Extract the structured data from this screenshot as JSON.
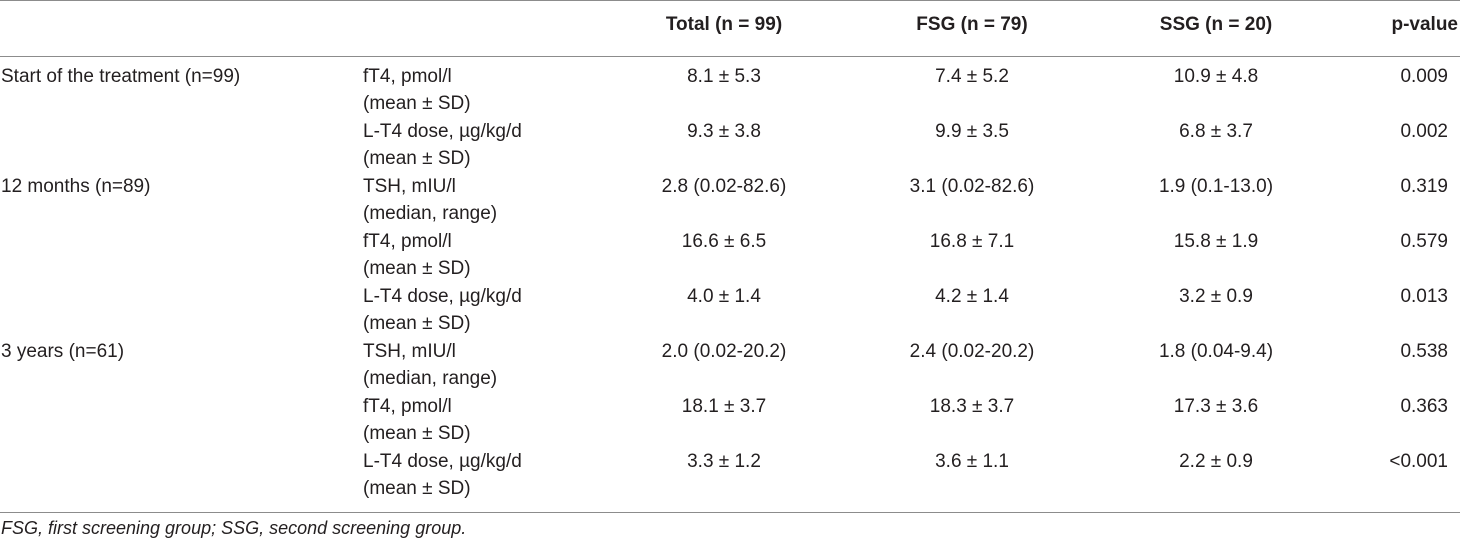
{
  "table": {
    "headers": {
      "group": "",
      "parameter": "",
      "total": "Total (n = 99)",
      "fsg": "FSG (n = 79)",
      "ssg": "SSG (n = 20)",
      "p": "p-value"
    },
    "rows": [
      {
        "group": "Start of the treatment (n=99)",
        "param": "fT4, pmol/l",
        "param2": "(mean ± SD)",
        "total": "8.1 ± 5.3",
        "fsg": "7.4 ± 5.2",
        "ssg": "10.9 ± 4.8",
        "p": "0.009"
      },
      {
        "group": "",
        "param": "L-T4 dose, µg/kg/d",
        "param2": "(mean ± SD)",
        "total": "9.3 ± 3.8",
        "fsg": "9.9 ± 3.5",
        "ssg": "6.8 ± 3.7",
        "p": "0.002"
      },
      {
        "group": "12 months (n=89)",
        "param": "TSH, mIU/l",
        "param2": "(median, range)",
        "total": "2.8 (0.02-82.6)",
        "fsg": "3.1 (0.02-82.6)",
        "ssg": "1.9 (0.1-13.0)",
        "p": "0.319"
      },
      {
        "group": "",
        "param": "fT4, pmol/l",
        "param2": "(mean ± SD)",
        "total": "16.6 ± 6.5",
        "fsg": "16.8 ± 7.1",
        "ssg": "15.8 ± 1.9",
        "p": "0.579"
      },
      {
        "group": "",
        "param": "L-T4 dose, µg/kg/d",
        "param2": "(mean ± SD)",
        "total": "4.0 ± 1.4",
        "fsg": "4.2 ± 1.4",
        "ssg": "3.2 ± 0.9",
        "p": "0.013"
      },
      {
        "group": "3 years (n=61)",
        "param": "TSH, mIU/l",
        "param2": "(median, range)",
        "total": "2.0 (0.02-20.2)",
        "fsg": "2.4 (0.02-20.2)",
        "ssg": "1.8 (0.04-9.4)",
        "p": "0.538"
      },
      {
        "group": "",
        "param": "fT4, pmol/l",
        "param2": "(mean ± SD)",
        "total": "18.1 ± 3.7",
        "fsg": "18.3 ± 3.7",
        "ssg": "17.3 ± 3.6",
        "p": "0.363"
      },
      {
        "group": "",
        "param": "L-T4 dose, µg/kg/d",
        "param2": "(mean ± SD)",
        "total": "3.3 ± 1.2",
        "fsg": "3.6 ± 1.1",
        "ssg": "2.2 ± 0.9",
        "p": "<0.001"
      }
    ],
    "footnote": "FSG, first screening group; SSG, second screening group."
  }
}
